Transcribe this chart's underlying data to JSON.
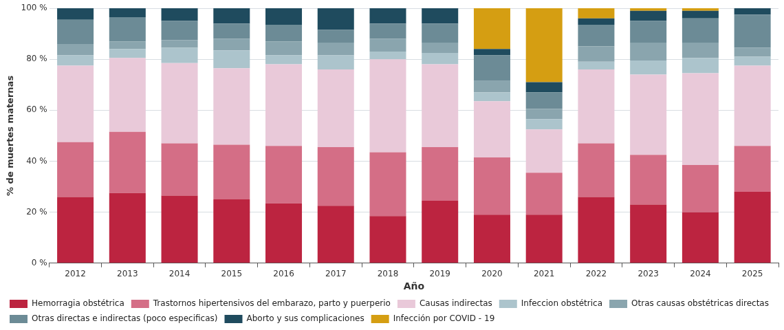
{
  "chart_data": {
    "type": "bar",
    "stacked": true,
    "xlabel": "Año",
    "ylabel": "% de muertes maternas",
    "categories": [
      "2012",
      "2013",
      "2014",
      "2015",
      "2016",
      "2017",
      "2018",
      "2019",
      "2020",
      "2021",
      "2022",
      "2023",
      "2024",
      "2025"
    ],
    "ylim": [
      0,
      100
    ],
    "yticks": [
      {
        "value": 0,
        "label": "0 %"
      },
      {
        "value": 20,
        "label": "20 %"
      },
      {
        "value": 40,
        "label": "40 %"
      },
      {
        "value": 60,
        "label": "60 %"
      },
      {
        "value": 80,
        "label": "80 %"
      },
      {
        "value": 100,
        "label": "100 %"
      }
    ],
    "grid": "y",
    "legend": "bottom",
    "series": [
      {
        "name": "Hemorragia obstétrica",
        "color": "#bc2440",
        "values": [
          26,
          27.5,
          26.5,
          25,
          23.5,
          22.5,
          18.5,
          24.5,
          19,
          19,
          26,
          23,
          20,
          28
        ]
      },
      {
        "name": "Trastornos hipertensivos del embarazo, parto y puerperio",
        "color": "#d46e86",
        "values": [
          21.5,
          24,
          20.5,
          21.5,
          22.5,
          23,
          25,
          21,
          22.5,
          16.5,
          21,
          19.5,
          18.5,
          18
        ]
      },
      {
        "name": "Causas indirectas",
        "color": "#e9c9d9",
        "values": [
          30,
          29,
          31.5,
          30,
          32,
          30.5,
          36.5,
          32.5,
          22,
          17,
          29,
          31.5,
          36,
          31.5
        ]
      },
      {
        "name": "Infeccion obstétrica",
        "color": "#acc4cc",
        "values": [
          4,
          3.5,
          6,
          7,
          3.5,
          5.5,
          3,
          4.5,
          3.5,
          4,
          3,
          5.5,
          6,
          3.5
        ]
      },
      {
        "name": "Otras causas obstétricas directas",
        "color": "#8aa5ae",
        "values": [
          4.5,
          3,
          3,
          4.5,
          5.5,
          5,
          5,
          4,
          4.5,
          4,
          6,
          7,
          6,
          3.5
        ]
      },
      {
        "name": "Otras directas e indirectas (poco especificas)",
        "color": "#6c8b96",
        "values": [
          9.5,
          9.5,
          7.5,
          6,
          6.5,
          5,
          6,
          7.5,
          10,
          6.5,
          8.5,
          8.5,
          9.5,
          13
        ]
      },
      {
        "name": "Aborto y sus complicaciones",
        "color": "#1f4b5e",
        "values": [
          4.5,
          3.5,
          5,
          6,
          6.5,
          8.5,
          6,
          6,
          2.5,
          4,
          2.5,
          4,
          3,
          2.5
        ]
      },
      {
        "name": "Infección por COVID - 19",
        "color": "#d59e12",
        "values": [
          null,
          null,
          null,
          null,
          null,
          null,
          null,
          null,
          16,
          29,
          4,
          1,
          1,
          null
        ]
      }
    ]
  }
}
